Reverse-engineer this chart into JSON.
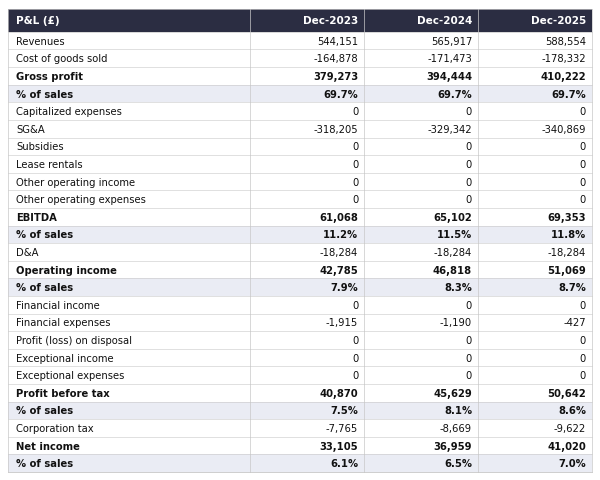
{
  "columns": [
    "P&L (£)",
    "Dec-2023",
    "Dec-2024",
    "Dec-2025"
  ],
  "rows": [
    {
      "label": "Revenues",
      "values": [
        "544,151",
        "565,917",
        "588,554"
      ],
      "bold": false,
      "shaded": false
    },
    {
      "label": "Cost of goods sold",
      "values": [
        "-164,878",
        "-171,473",
        "-178,332"
      ],
      "bold": false,
      "shaded": false
    },
    {
      "label": "Gross profit",
      "values": [
        "379,273",
        "394,444",
        "410,222"
      ],
      "bold": true,
      "shaded": false
    },
    {
      "label": "% of sales",
      "values": [
        "69.7%",
        "69.7%",
        "69.7%"
      ],
      "bold": true,
      "shaded": true
    },
    {
      "label": "Capitalized expenses",
      "values": [
        "0",
        "0",
        "0"
      ],
      "bold": false,
      "shaded": false
    },
    {
      "label": "SG&A",
      "values": [
        "-318,205",
        "-329,342",
        "-340,869"
      ],
      "bold": false,
      "shaded": false
    },
    {
      "label": "Subsidies",
      "values": [
        "0",
        "0",
        "0"
      ],
      "bold": false,
      "shaded": false
    },
    {
      "label": "Lease rentals",
      "values": [
        "0",
        "0",
        "0"
      ],
      "bold": false,
      "shaded": false
    },
    {
      "label": "Other operating income",
      "values": [
        "0",
        "0",
        "0"
      ],
      "bold": false,
      "shaded": false
    },
    {
      "label": "Other operating expenses",
      "values": [
        "0",
        "0",
        "0"
      ],
      "bold": false,
      "shaded": false
    },
    {
      "label": "EBITDA",
      "values": [
        "61,068",
        "65,102",
        "69,353"
      ],
      "bold": true,
      "shaded": false
    },
    {
      "label": "% of sales",
      "values": [
        "11.2%",
        "11.5%",
        "11.8%"
      ],
      "bold": true,
      "shaded": true
    },
    {
      "label": "D&A",
      "values": [
        "-18,284",
        "-18,284",
        "-18,284"
      ],
      "bold": false,
      "shaded": false
    },
    {
      "label": "Operating income",
      "values": [
        "42,785",
        "46,818",
        "51,069"
      ],
      "bold": true,
      "shaded": false
    },
    {
      "label": "% of sales",
      "values": [
        "7.9%",
        "8.3%",
        "8.7%"
      ],
      "bold": true,
      "shaded": true
    },
    {
      "label": "Financial income",
      "values": [
        "0",
        "0",
        "0"
      ],
      "bold": false,
      "shaded": false
    },
    {
      "label": "Financial expenses",
      "values": [
        "-1,915",
        "-1,190",
        "-427"
      ],
      "bold": false,
      "shaded": false
    },
    {
      "label": "Profit (loss) on disposal",
      "values": [
        "0",
        "0",
        "0"
      ],
      "bold": false,
      "shaded": false
    },
    {
      "label": "Exceptional income",
      "values": [
        "0",
        "0",
        "0"
      ],
      "bold": false,
      "shaded": false
    },
    {
      "label": "Exceptional expenses",
      "values": [
        "0",
        "0",
        "0"
      ],
      "bold": false,
      "shaded": false
    },
    {
      "label": "Profit before tax",
      "values": [
        "40,870",
        "45,629",
        "50,642"
      ],
      "bold": true,
      "shaded": false
    },
    {
      "label": "% of sales",
      "values": [
        "7.5%",
        "8.1%",
        "8.6%"
      ],
      "bold": true,
      "shaded": true
    },
    {
      "label": "Corporation tax",
      "values": [
        "-7,765",
        "-8,669",
        "-9,622"
      ],
      "bold": false,
      "shaded": false
    },
    {
      "label": "Net income",
      "values": [
        "33,105",
        "36,959",
        "41,020"
      ],
      "bold": true,
      "shaded": false
    },
    {
      "label": "% of sales",
      "values": [
        "6.1%",
        "6.5%",
        "7.0%"
      ],
      "bold": true,
      "shaded": true
    }
  ],
  "header_bg": "#2b2d42",
  "header_fg": "#ffffff",
  "shaded_bg": "#eaecf4",
  "normal_bg": "#ffffff",
  "alt_bg": "#f5f6fa",
  "border_color": "#c8c8c8",
  "font_size": 7.2,
  "header_font_size": 7.5,
  "fig_width": 6.0,
  "fig_height": 4.81
}
